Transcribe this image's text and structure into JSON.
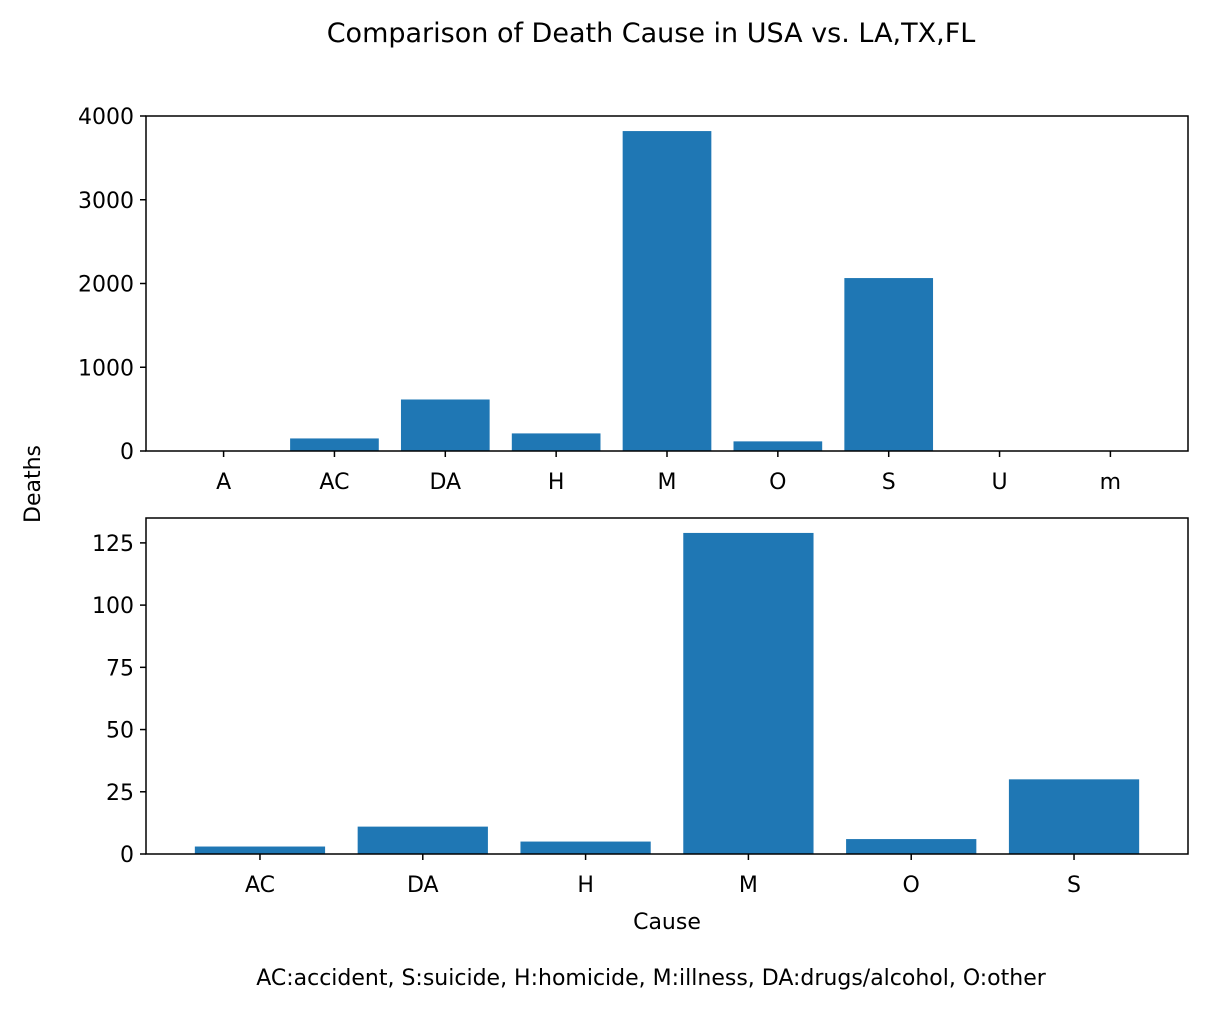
{
  "figure": {
    "title": "Comparison of Death Cause in USA vs. LA,TX,FL",
    "shared_ylabel": "Deaths",
    "footnote": "AC:accident, S:suicide, H:homicide, M:illness, DA:drugs/alcohol, O:other"
  },
  "colors": {
    "bar": "#1f77b4"
  },
  "chart_data": [
    {
      "type": "bar",
      "categories": [
        "A",
        "AC",
        "DA",
        "H",
        "M",
        "O",
        "S",
        "U",
        "m"
      ],
      "values": [
        2,
        150,
        615,
        210,
        3820,
        115,
        2065,
        2,
        2
      ],
      "ylim": [
        0,
        4000
      ],
      "yticks": [
        0,
        1000,
        2000,
        3000,
        4000
      ],
      "xlabel": "",
      "ylabel": "Deaths"
    },
    {
      "type": "bar",
      "categories": [
        "AC",
        "DA",
        "H",
        "M",
        "O",
        "S"
      ],
      "values": [
        3,
        11,
        5,
        129,
        6,
        30
      ],
      "ylim": [
        0,
        135
      ],
      "yticks": [
        0,
        25,
        50,
        75,
        100,
        125
      ],
      "xlabel": "Cause",
      "ylabel": "Deaths"
    }
  ]
}
